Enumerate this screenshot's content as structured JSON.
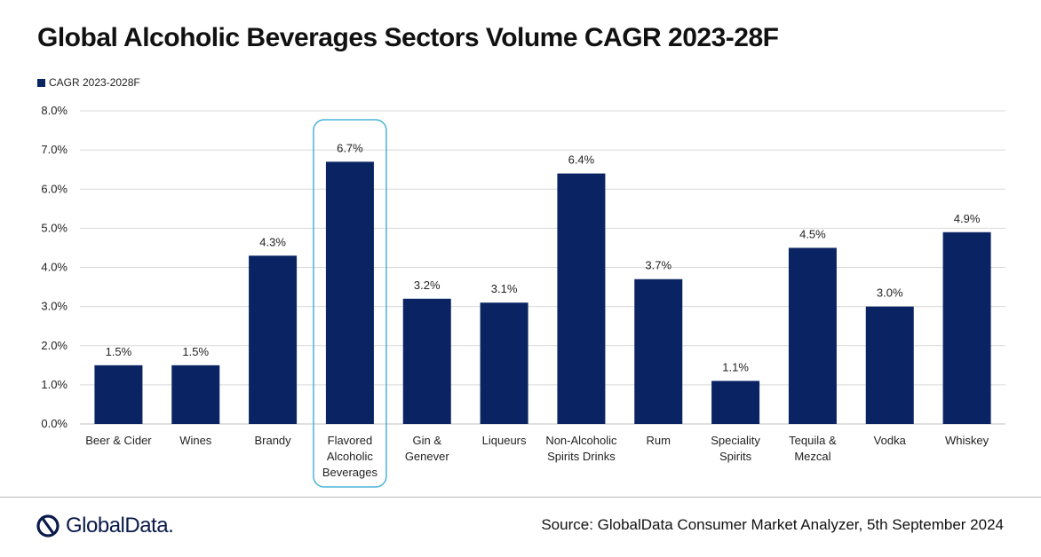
{
  "chart_data": {
    "type": "bar",
    "title": "Global Alcoholic Beverages Sectors Volume CAGR 2023-28F",
    "legend": "CAGR 2023-2028F",
    "categories": [
      [
        "Beer & Cider"
      ],
      [
        "Wines"
      ],
      [
        "Brandy"
      ],
      [
        "Flavored",
        "Alcoholic",
        "Beverages"
      ],
      [
        "Gin &",
        "Genever"
      ],
      [
        "Liqueurs"
      ],
      [
        "Non-Alcoholic",
        "Spirits Drinks"
      ],
      [
        "Rum"
      ],
      [
        "Speciality",
        "Spirits"
      ],
      [
        "Tequila &",
        "Mezcal"
      ],
      [
        "Vodka"
      ],
      [
        "Whiskey"
      ]
    ],
    "values": [
      1.5,
      1.5,
      4.3,
      6.7,
      3.2,
      3.1,
      6.4,
      3.7,
      1.1,
      4.5,
      3.0,
      4.9
    ],
    "value_labels": [
      "1.5%",
      "1.5%",
      "4.3%",
      "6.7%",
      "3.2%",
      "3.1%",
      "6.4%",
      "3.7%",
      "1.1%",
      "4.5%",
      "3.0%",
      "4.9%"
    ],
    "y_ticks": [
      "0.0%",
      "1.0%",
      "2.0%",
      "3.0%",
      "4.0%",
      "5.0%",
      "6.0%",
      "7.0%",
      "8.0%"
    ],
    "ylim": [
      0,
      8
    ],
    "highlighted_index": 3,
    "xlabel": "",
    "ylabel": ""
  },
  "colors": {
    "bar": "#0a2463",
    "highlight_border": "#4ab3d8",
    "grid": "#d9d9d9"
  },
  "footer": {
    "logo_text": "GlobalData.",
    "source": "Source: GlobalData Consumer Market Analyzer, 5th September 2024"
  }
}
